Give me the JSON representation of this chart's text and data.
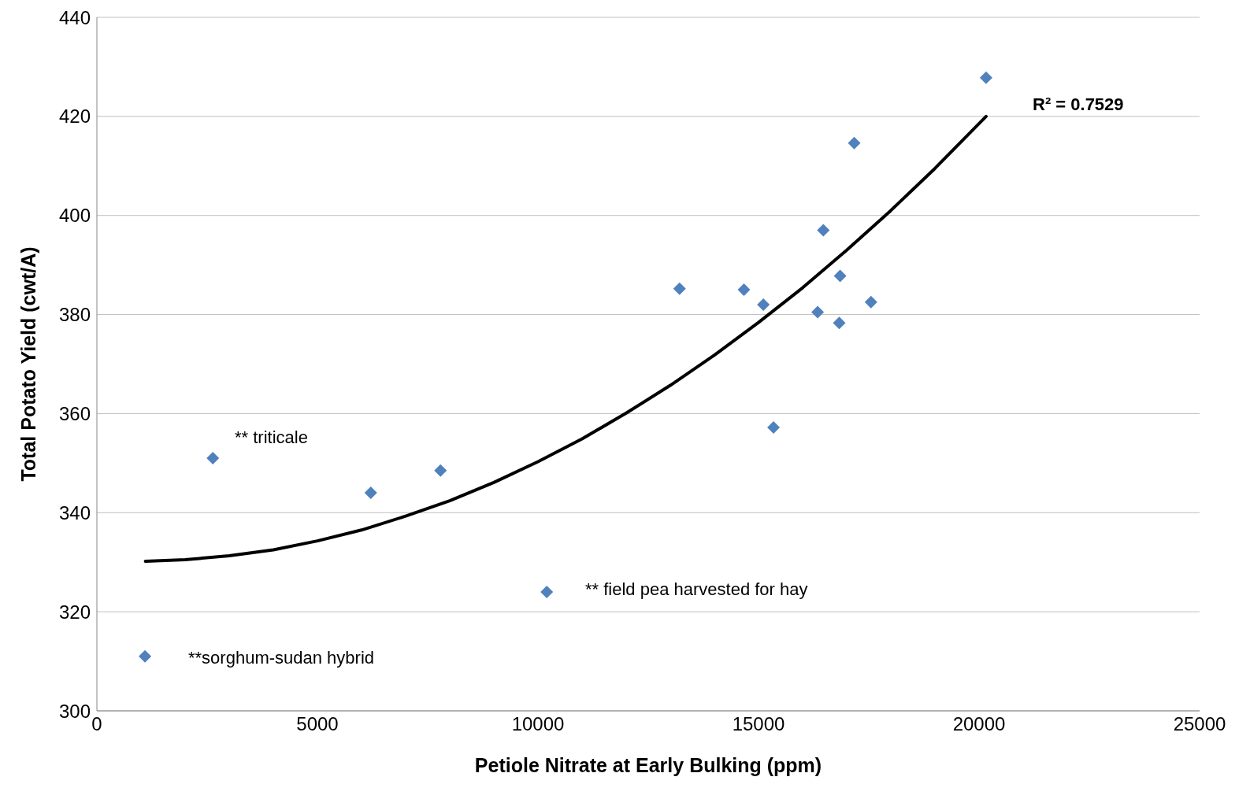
{
  "chart_data": {
    "type": "scatter",
    "xlabel": "Petiole Nitrate at Early Bulking (ppm)",
    "ylabel": "Total Potato Yield (cwt/A)",
    "xlim": [
      0,
      25000
    ],
    "xticks": [
      0,
      5000,
      10000,
      15000,
      20000,
      25000
    ],
    "ylim": [
      300,
      440
    ],
    "yticks": [
      300,
      320,
      340,
      360,
      380,
      400,
      420,
      440
    ],
    "grid": "y",
    "series": [
      {
        "marker": "diamond",
        "color": "#4f81bd",
        "x": [
          1090,
          2630,
          6210,
          7790,
          10200,
          13210,
          14670,
          15110,
          15340,
          16340,
          16470,
          16830,
          16850,
          17170,
          17550,
          20160
        ],
        "values": [
          311,
          351,
          344,
          348.5,
          324,
          385.2,
          385,
          382,
          357.2,
          380.5,
          397,
          378.3,
          387.8,
          414.6,
          382.5,
          427.8
        ]
      },
      {
        "type": "line",
        "marker": "none",
        "color": "#000000",
        "line_style": "solid",
        "x": [
          1100,
          2000,
          3000,
          4000,
          5000,
          6000,
          7000,
          8000,
          9000,
          10000,
          11000,
          12000,
          13000,
          14000,
          15000,
          16000,
          17000,
          18000,
          19000,
          20160
        ],
        "values": [
          330.2,
          330.5,
          331.3,
          332.5,
          334.3,
          336.5,
          339.3,
          342.4,
          346.1,
          350.3,
          354.9,
          360.1,
          365.7,
          371.8,
          378.4,
          385.4,
          393.0,
          401.0,
          409.5,
          420.0
        ]
      }
    ],
    "annotations": [
      "** triticale",
      "** field pea harvested for hay",
      "**sorghum-sudan hybrid",
      "R² = 0.7529"
    ]
  }
}
